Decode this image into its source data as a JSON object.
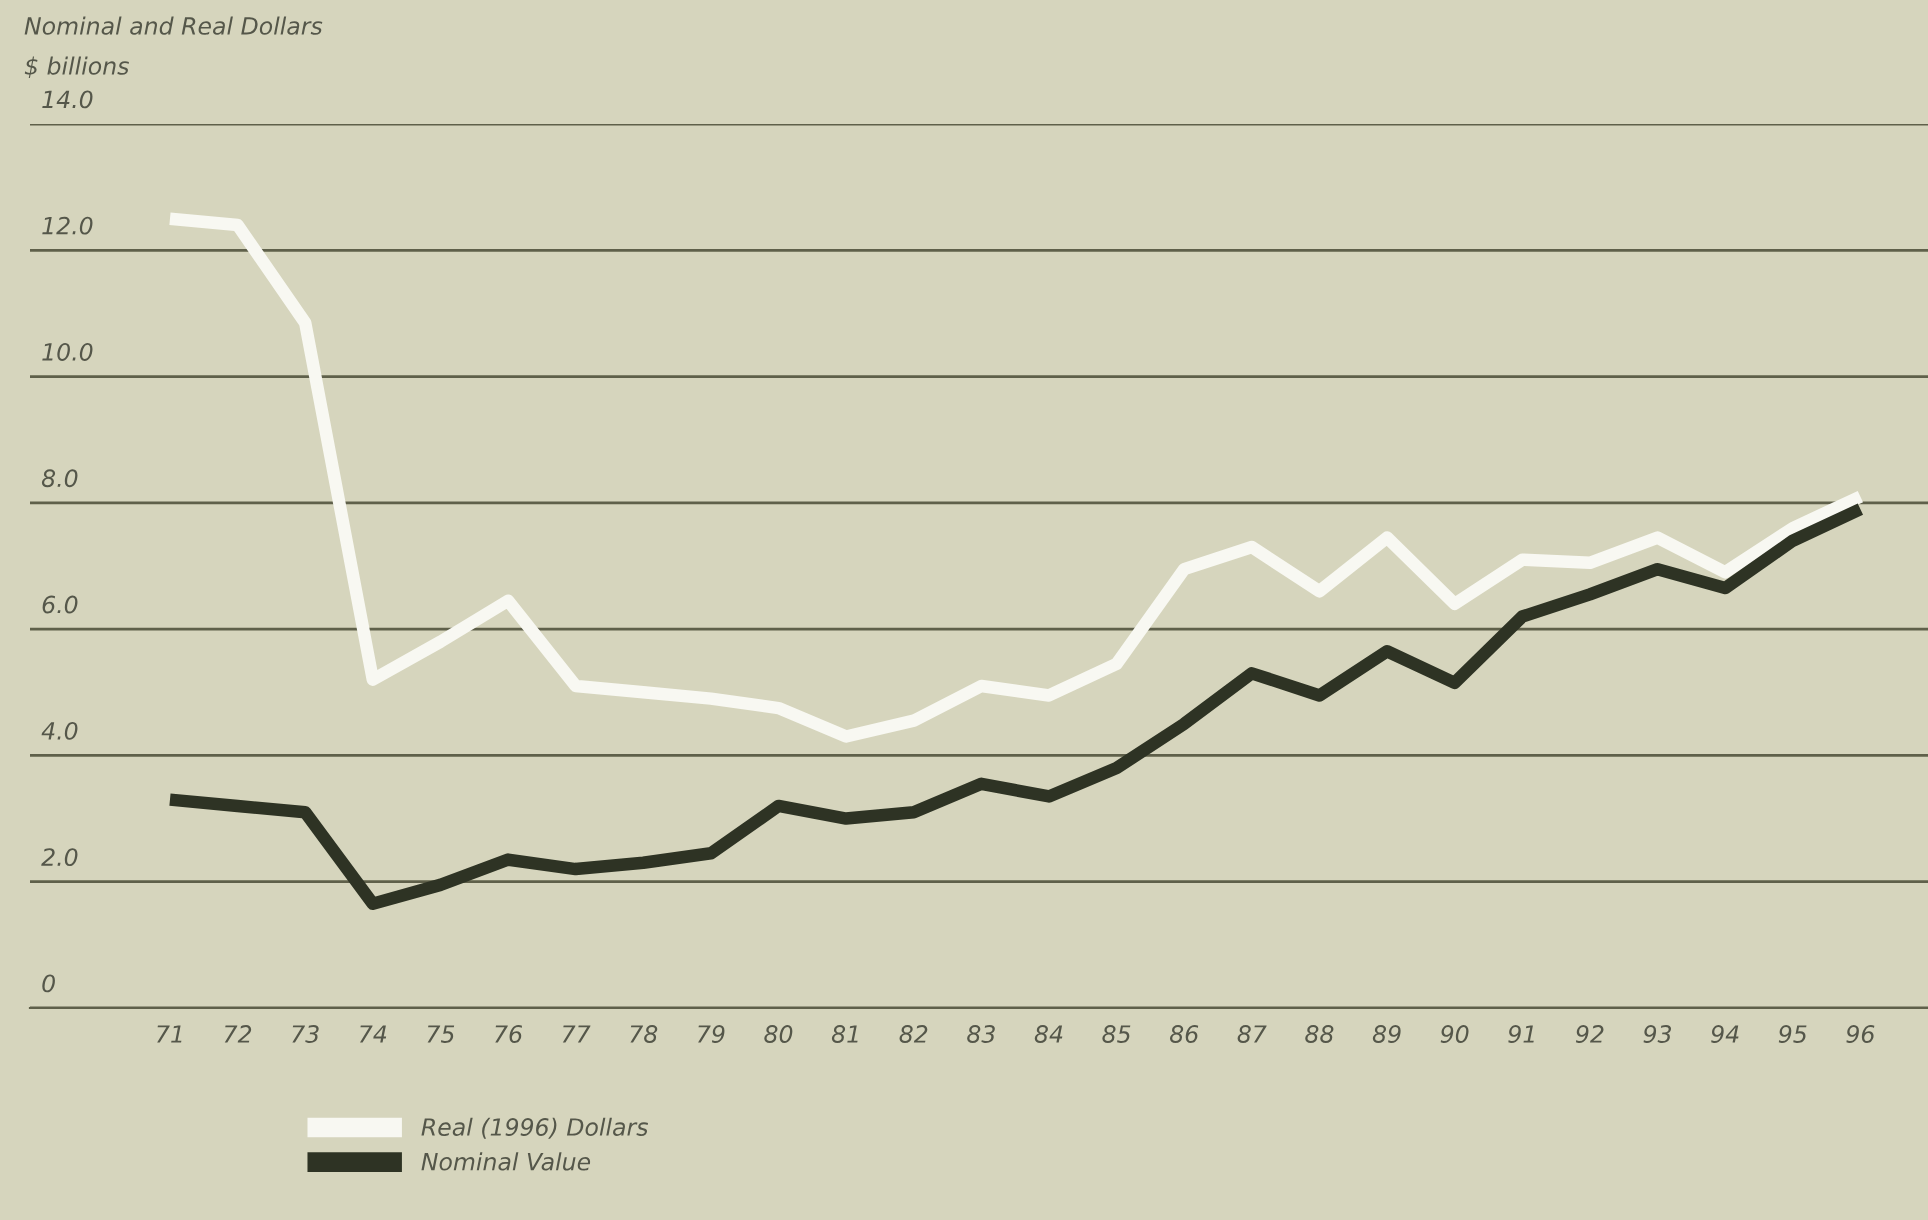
{
  "chart_data": {
    "type": "line",
    "title": "Nominal and Real Dollars",
    "ylabel": "$ billions",
    "categories": [
      "71",
      "72",
      "73",
      "74",
      "75",
      "76",
      "77",
      "78",
      "79",
      "80",
      "81",
      "82",
      "83",
      "84",
      "85",
      "86",
      "87",
      "88",
      "89",
      "90",
      "91",
      "92",
      "93",
      "94",
      "95",
      "96"
    ],
    "series": [
      {
        "name": "Real (1996) Dollars",
        "color": "#f8f8f2",
        "values": [
          12.5,
          12.4,
          10.85,
          5.2,
          5.8,
          6.45,
          5.1,
          5.0,
          4.9,
          4.75,
          4.3,
          4.55,
          5.1,
          4.95,
          5.45,
          6.95,
          7.3,
          6.6,
          7.45,
          6.4,
          7.1,
          7.05,
          7.45,
          6.9,
          7.6,
          8.1
        ]
      },
      {
        "name": "Nominal Value",
        "color": "#2e3324",
        "values": [
          3.3,
          3.2,
          3.1,
          1.65,
          1.95,
          2.35,
          2.2,
          2.3,
          2.45,
          3.2,
          3.0,
          3.1,
          3.55,
          3.35,
          3.8,
          4.5,
          5.3,
          4.95,
          5.65,
          5.15,
          6.2,
          6.55,
          6.95,
          6.65,
          7.4,
          7.9
        ]
      }
    ],
    "ylim": [
      0,
      14
    ],
    "yticks": [
      0,
      {
        "value": 2,
        "label": "2.0"
      },
      {
        "value": 4,
        "label": "4.0"
      },
      {
        "value": 6,
        "label": "6.0"
      },
      {
        "value": 8,
        "label": "8.0"
      },
      {
        "value": 10,
        "label": "10.0"
      },
      {
        "value": 12,
        "label": "12.0"
      },
      {
        "value": 14,
        "label": "14.0"
      }
    ],
    "grid": "y",
    "legend": "bottom left",
    "marker": "none",
    "line_style": "solid"
  }
}
